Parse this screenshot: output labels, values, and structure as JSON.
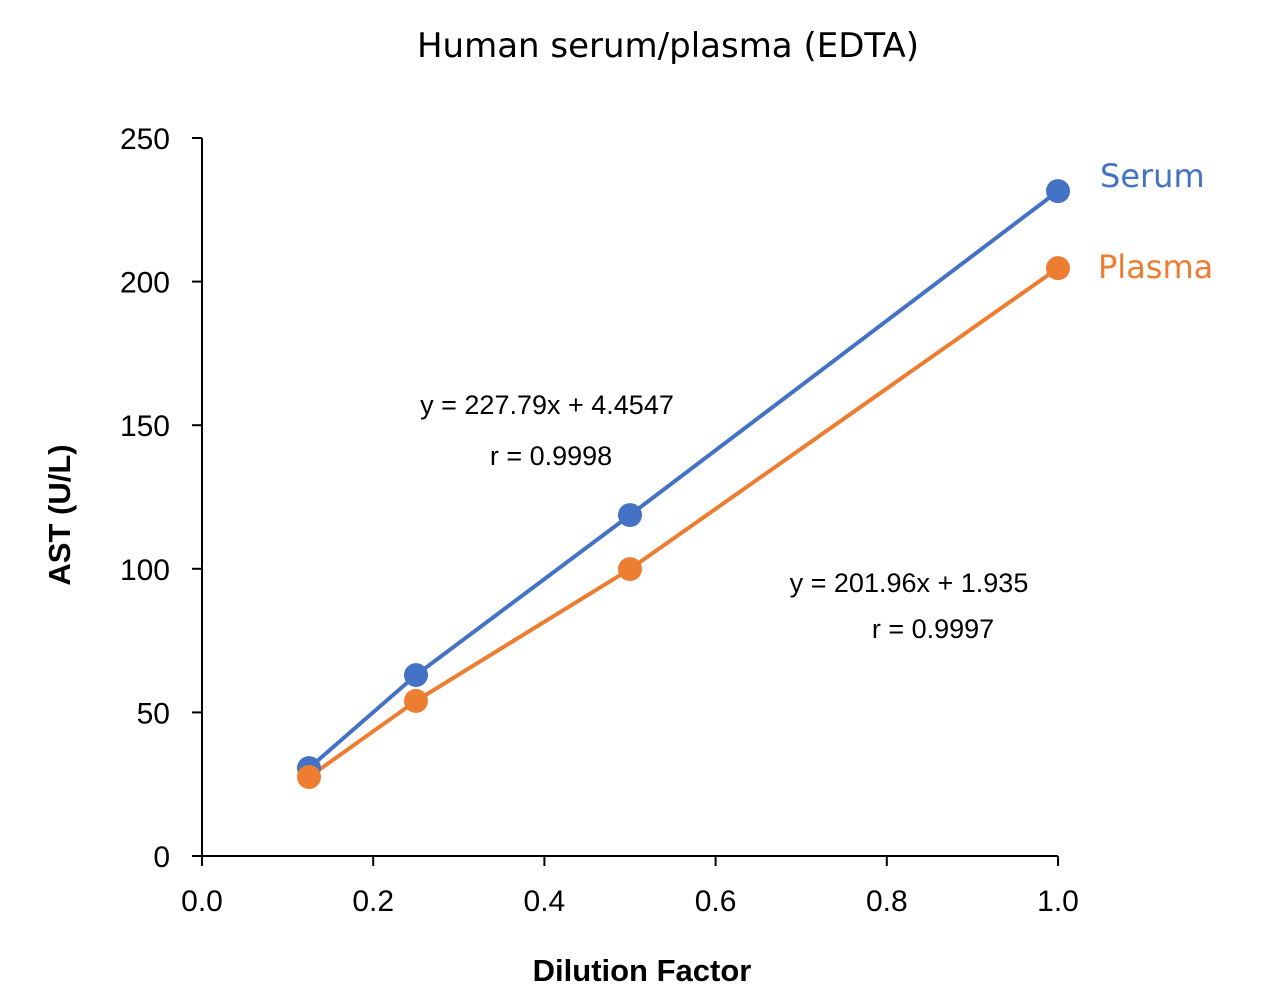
{
  "chart_data": {
    "type": "scatter",
    "title": "Human serum/plasma (EDTA)",
    "xlabel": "Dilution Factor",
    "ylabel": "AST (U/L)",
    "xlim": [
      0,
      1.0
    ],
    "ylim": [
      0,
      250
    ],
    "xticks": [
      "0.0",
      "0.2",
      "0.4",
      "0.6",
      "0.8",
      "1.0"
    ],
    "yticks": [
      "0",
      "50",
      "100",
      "150",
      "200",
      "250"
    ],
    "grid": false,
    "legend": "right, labels at line ends",
    "series": [
      {
        "name": "Serum",
        "color": "#4472C4",
        "x": [
          0.125,
          0.25,
          0.5,
          1.0
        ],
        "y": [
          30.6,
          63.0,
          118.7,
          231.5
        ],
        "equation": "y = 227.79x + 4.4547",
        "r": "r = 0.9998"
      },
      {
        "name": "Plasma",
        "color": "#ED7D31",
        "x": [
          0.125,
          0.25,
          0.5,
          1.0
        ],
        "y": [
          27.5,
          54.0,
          99.9,
          204.7
        ],
        "equation": "y = 201.96x + 1.935",
        "r": "r = 0.9997"
      }
    ]
  }
}
